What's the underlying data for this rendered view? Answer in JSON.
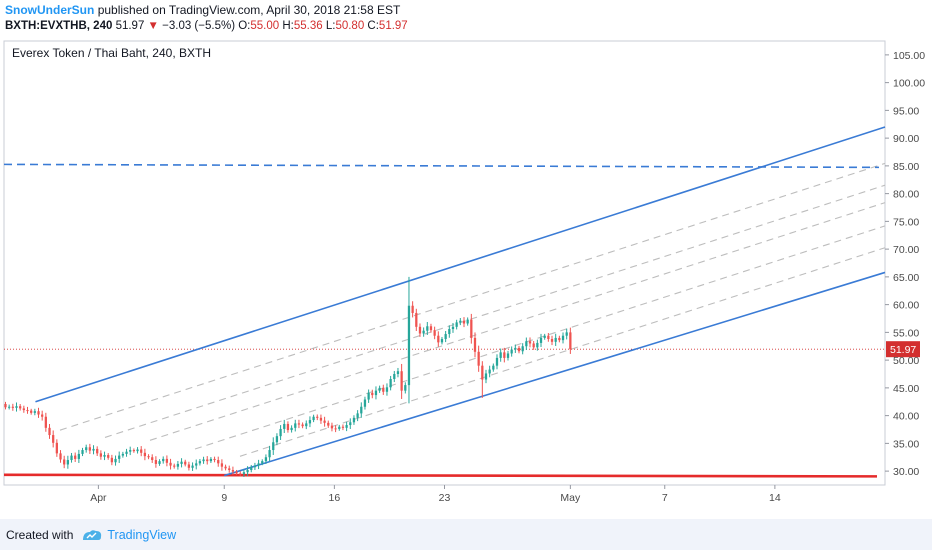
{
  "header": {
    "author": "SnowUnderSun",
    "published": "published on TradingView.com, April 30, 2018 21:58 EST",
    "symbol": "BXTH:EVXTHB, 240",
    "last": "51.97",
    "change_arrow": "▼",
    "change": "−3.03 (−5.5%)",
    "open_label": "O:",
    "open": "55.00",
    "high_label": "H:",
    "high": "55.36",
    "low_label": "L:",
    "low": "50.80",
    "close_label": "C:",
    "close": "51.97"
  },
  "footer": {
    "created_with": "Created with",
    "brand": "TradingView"
  },
  "colors": {
    "up": "#26a69a",
    "up_light": "#4caf50",
    "down": "#ef5350",
    "channel": "#3a7bd5",
    "support": "#e52b2b",
    "fib": "#bdbdbd",
    "last_price": "#d32f2f"
  },
  "chart_data": {
    "type": "candlestick",
    "title": "Everex Token / Thai Baht, 240, BXTH",
    "ylim": [
      27.5,
      107.5
    ],
    "y_ticks": [
      "30.00",
      "35.00",
      "40.00",
      "45.00",
      "50.00",
      "55.00",
      "60.00",
      "65.00",
      "70.00",
      "75.00",
      "80.00",
      "85.00",
      "90.00",
      "95.00",
      "100.00",
      "105.00"
    ],
    "x_ticks": [
      {
        "label": "Apr",
        "date": "2018-04-01"
      },
      {
        "label": "9",
        "date": "2018-04-09"
      },
      {
        "label": "16",
        "date": "2018-04-16"
      },
      {
        "label": "23",
        "date": "2018-04-23"
      },
      {
        "label": "May",
        "date": "2018-05-01"
      },
      {
        "label": "7",
        "date": "2018-05-07"
      },
      {
        "label": "14",
        "date": "2018-05-14"
      }
    ],
    "xlim": [
      "2018-03-26",
      "2018-05-21"
    ],
    "last_price": 51.97,
    "last_price_label": "51.97",
    "series_close": [
      41.5,
      41.6,
      41.4,
      41.7,
      41.3,
      41.0,
      40.9,
      40.5,
      40.8,
      40.2,
      39.8,
      37.8,
      36.5,
      35.1,
      33.2,
      32.1,
      31.2,
      32.0,
      32.8,
      32.2,
      33.1,
      33.8,
      34.3,
      33.7,
      34.0,
      33.2,
      32.6,
      32.9,
      32.4,
      31.6,
      32.2,
      32.8,
      33.1,
      33.5,
      33.8,
      33.6,
      33.9,
      33.3,
      32.7,
      32.5,
      32.0,
      31.3,
      31.8,
      32.2,
      31.5,
      31.0,
      30.8,
      31.3,
      31.7,
      31.2,
      30.6,
      31.0,
      31.4,
      31.8,
      32.1,
      31.8,
      32.2,
      32.0,
      31.4,
      30.8,
      30.5,
      30.2,
      29.9,
      29.6,
      29.5,
      29.8,
      30.2,
      30.7,
      31.0,
      31.4,
      31.8,
      32.5,
      33.8,
      35.2,
      36.3,
      37.6,
      38.5,
      37.4,
      37.8,
      38.6,
      38.4,
      38.1,
      38.6,
      39.2,
      39.8,
      39.6,
      39.1,
      38.7,
      38.2,
      37.7,
      37.6,
      38.0,
      37.8,
      38.3,
      38.8,
      39.6,
      40.4,
      41.6,
      42.9,
      44.1,
      43.7,
      44.5,
      45.0,
      44.3,
      45.1,
      46.6,
      47.5,
      48.0,
      44.5,
      45.5,
      59.8,
      58.5,
      56.0,
      54.8,
      55.3,
      56.1,
      55.4,
      54.4,
      53.2,
      53.8,
      54.7,
      55.6,
      56.0,
      56.8,
      57.1,
      56.6,
      57.3,
      54.0,
      51.5,
      49.0,
      46.5,
      47.6,
      48.3,
      49.0,
      50.4,
      51.4,
      50.4,
      51.2,
      51.9,
      52.2,
      51.6,
      52.5,
      53.4,
      53.0,
      52.3,
      53.1,
      54.0,
      54.4,
      53.8,
      53.3,
      54.0,
      53.6,
      54.4,
      55.0,
      51.97
    ],
    "channel_upper": [
      {
        "x": "2018-03-28",
        "y": 42.5
      },
      {
        "x": "2018-05-21",
        "y": 92.0
      }
    ],
    "channel_lower": [
      {
        "x": "2018-04-09",
        "y": 29.2
      },
      {
        "x": "2018-05-21",
        "y": 65.8
      }
    ],
    "horizontal_resistance": 85.0,
    "horizontal_support": 29.2
  }
}
